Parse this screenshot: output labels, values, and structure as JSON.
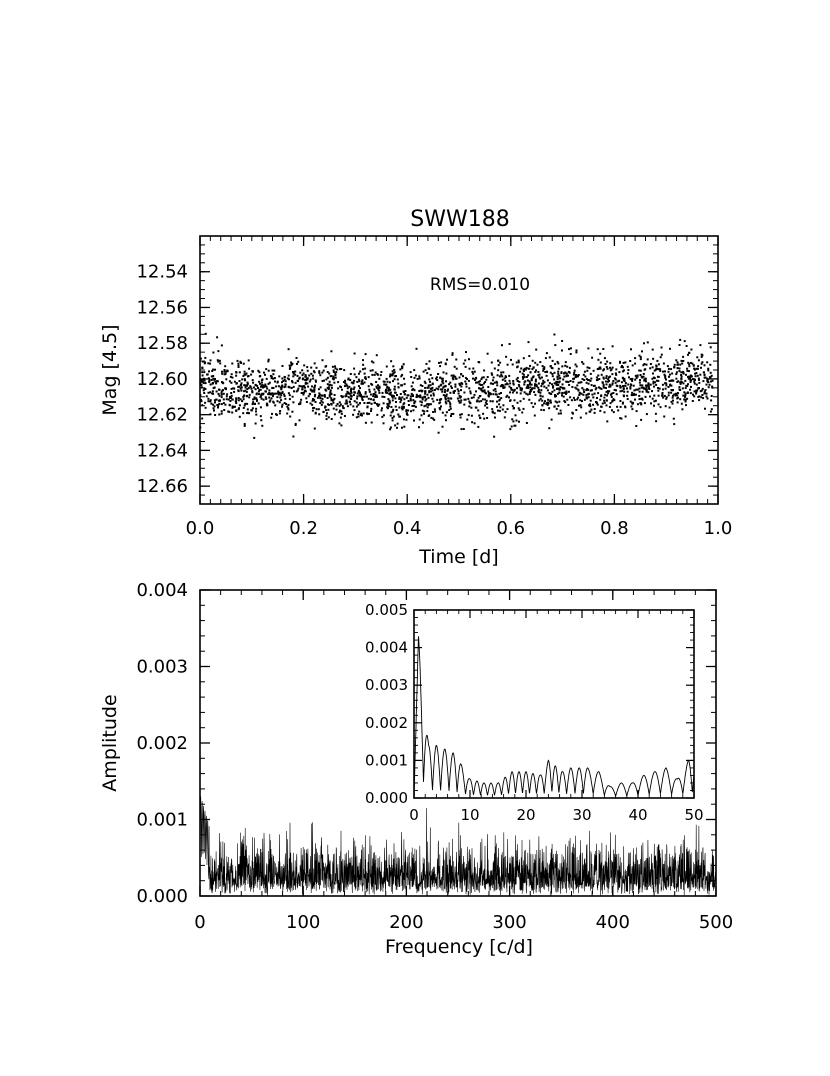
{
  "chart_data": [
    {
      "type": "scatter",
      "title": "SWW188",
      "xlabel": "Time [d]",
      "ylabel": "Mag [4.5]",
      "annotation": "RMS=0.010",
      "xlim": [
        0.0,
        1.0
      ],
      "ylim": [
        12.67,
        12.52
      ],
      "y_inverted": true,
      "xticks": [
        "0.0",
        "0.2",
        "0.4",
        "0.6",
        "0.8",
        "1.0"
      ],
      "yticks": [
        "12.54",
        "12.56",
        "12.58",
        "12.60",
        "12.62",
        "12.64",
        "12.66"
      ],
      "series": [
        {
          "n_points": 2400,
          "x_range": [
            0.0,
            0.99
          ],
          "mean_mag": 12.606,
          "trend": [
            [
              0.0,
              12.604
            ],
            [
              0.1,
              12.607
            ],
            [
              0.2,
              12.605
            ],
            [
              0.3,
              12.606
            ],
            [
              0.4,
              12.609
            ],
            [
              0.5,
              12.607
            ],
            [
              0.6,
              12.605
            ],
            [
              0.7,
              12.603
            ],
            [
              0.8,
              12.604
            ],
            [
              0.9,
              12.601
            ],
            [
              0.99,
              12.6
            ]
          ],
          "rms": 0.01
        }
      ]
    },
    {
      "type": "line",
      "xlabel": "Frequency [c/d]",
      "ylabel": "Amplitude",
      "xlim": [
        0,
        500
      ],
      "ylim": [
        0.0,
        0.004
      ],
      "xticks": [
        "0",
        "100",
        "200",
        "300",
        "400",
        "500"
      ],
      "yticks": [
        "0.000",
        "0.001",
        "0.002",
        "0.003",
        "0.004"
      ],
      "series": [
        {
          "low_freq_peak": {
            "x": 1,
            "y": 0.00135
          },
          "typical_max": 0.001,
          "mean_level": 0.0003
        }
      ]
    },
    {
      "type": "line",
      "inset": true,
      "xlim": [
        0,
        50
      ],
      "ylim": [
        0.0,
        0.005
      ],
      "xticks": [
        "0",
        "10",
        "20",
        "30",
        "40",
        "50"
      ],
      "yticks": [
        "0.000",
        "0.001",
        "0.002",
        "0.003",
        "0.004",
        "0.005"
      ],
      "series": [
        {
          "peaks": [
            [
              0.8,
              0.0043
            ],
            [
              2.6,
              0.0014
            ],
            [
              4.0,
              0.0014
            ],
            [
              5.5,
              0.0013
            ],
            [
              7.0,
              0.0012
            ],
            [
              8.4,
              0.0009
            ],
            [
              10.0,
              0.0005
            ],
            [
              12.5,
              0.0004
            ],
            [
              15.0,
              0.0004
            ],
            [
              17.5,
              0.0007
            ],
            [
              20.0,
              0.0007
            ],
            [
              22.5,
              0.0006
            ],
            [
              24.0,
              0.001
            ],
            [
              26.5,
              0.0007
            ],
            [
              28.0,
              0.0008
            ],
            [
              29.5,
              0.0008
            ],
            [
              31.0,
              0.0008
            ],
            [
              33.0,
              0.0007
            ],
            [
              35.0,
              0.0003
            ],
            [
              37.0,
              0.0004
            ],
            [
              39.0,
              0.0004
            ],
            [
              41.0,
              0.0006
            ],
            [
              43.0,
              0.0007
            ],
            [
              45.0,
              0.0008
            ],
            [
              47.0,
              0.0005
            ],
            [
              49.0,
              0.001
            ]
          ]
        }
      ]
    }
  ]
}
